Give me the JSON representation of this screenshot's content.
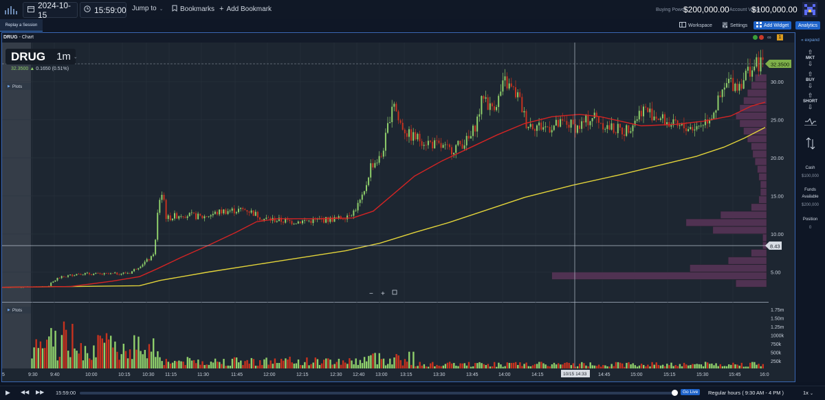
{
  "topbar": {
    "date": "2024-10-15",
    "time": "15:59:00",
    "jump_to": "Jump to",
    "bookmarks": "Bookmarks",
    "add_bookmark": "Add Bookmark",
    "buying_power_label": "Buying Power",
    "buying_power_value": "$200,000.00",
    "account_value_label": "Account Value",
    "account_value_value": "$100,000.00"
  },
  "subbar": {
    "replay_tab": "Replay a Session",
    "workspace": "Workspace",
    "settings": "Settings",
    "add_widget": "Add Widget",
    "analytics": "Analytics"
  },
  "panel": {
    "title_symbol": "DRUG",
    "title_suffix": " - Chart",
    "badge": "1"
  },
  "chart": {
    "symbol": "DRUG",
    "interval": "1m",
    "last_price": "32.3500",
    "change": "0.1650 (0.51%)",
    "plots_label": "Plots",
    "volume_plots_label": "Plots",
    "price_tag": "32.3500",
    "crosshair_price": "8.43",
    "crosshair_time": "10/15 14:33",
    "left_edge_label": "5",
    "right_edge_label": "16:0",
    "colors": {
      "up": "#8fcf6b",
      "down": "#c8321e",
      "ma_fast": "#d42424",
      "ma_slow": "#e3d43a",
      "profile": "#5a3558",
      "tag_green": "#7fb04a"
    }
  },
  "chart_data": {
    "type": "candlestick",
    "x_ticks": [
      "9:30",
      "9:40",
      "10:00",
      "10:15",
      "10:30",
      "11:15",
      "11:30",
      "11:45",
      "12:00",
      "12:15",
      "12:30",
      "12:40",
      "13:00",
      "13:15",
      "13:30",
      "13:45",
      "14:00",
      "14:15",
      "14:30",
      "14:45",
      "15:00",
      "15:15",
      "15:30",
      "15:45"
    ],
    "y_ticks": [
      "30.00",
      "25.00",
      "20.00",
      "15.00",
      "10.00",
      "5.00"
    ],
    "volume_ticks": [
      "1.75m",
      "1.50m",
      "1.25m",
      "1000k",
      "750k",
      "500k",
      "250k"
    ],
    "price_path": [
      [
        0,
        3.0
      ],
      [
        65,
        3.1
      ],
      [
        80,
        4.2
      ],
      [
        110,
        4.8
      ],
      [
        150,
        4.7
      ],
      [
        185,
        4.9
      ],
      [
        205,
        6.2
      ],
      [
        218,
        7.0
      ],
      [
        222,
        9.0
      ],
      [
        226,
        13.5
      ],
      [
        230,
        15.5
      ],
      [
        234,
        14.8
      ],
      [
        238,
        12.0
      ],
      [
        260,
        12.6
      ],
      [
        290,
        12.2
      ],
      [
        320,
        13.0
      ],
      [
        355,
        13.2
      ],
      [
        380,
        12.0
      ],
      [
        420,
        11.6
      ],
      [
        460,
        11.8
      ],
      [
        490,
        12.0
      ],
      [
        510,
        12.9
      ],
      [
        525,
        15.0
      ],
      [
        535,
        19.0
      ],
      [
        550,
        20.0
      ],
      [
        558,
        23.0
      ],
      [
        568,
        28.0
      ],
      [
        575,
        25.0
      ],
      [
        590,
        23.0
      ],
      [
        620,
        22.0
      ],
      [
        650,
        21.0
      ],
      [
        680,
        22.5
      ],
      [
        690,
        25.0
      ],
      [
        700,
        28.5
      ],
      [
        708,
        26.5
      ],
      [
        720,
        27.5
      ],
      [
        730,
        30.0
      ],
      [
        750,
        28.0
      ],
      [
        762,
        24.5
      ],
      [
        790,
        24.0
      ],
      [
        820,
        24.5
      ],
      [
        836,
        24.0
      ],
      [
        860,
        25.5
      ],
      [
        880,
        24.0
      ],
      [
        905,
        23.5
      ],
      [
        920,
        25.0
      ],
      [
        930,
        26.5
      ],
      [
        950,
        25.5
      ],
      [
        980,
        24.0
      ],
      [
        1010,
        24.0
      ],
      [
        1030,
        25.5
      ],
      [
        1045,
        28.0
      ],
      [
        1055,
        30.0
      ],
      [
        1070,
        29.5
      ],
      [
        1085,
        31.5
      ],
      [
        1100,
        32.35
      ]
    ],
    "ma_fast_path": [
      [
        0,
        3.0
      ],
      [
        100,
        3.1
      ],
      [
        160,
        3.8
      ],
      [
        200,
        4.4
      ],
      [
        225,
        5.4
      ],
      [
        260,
        6.9
      ],
      [
        300,
        8.5
      ],
      [
        340,
        10.2
      ],
      [
        370,
        11.6
      ],
      [
        400,
        12.0
      ],
      [
        460,
        12.0
      ],
      [
        510,
        12.1
      ],
      [
        540,
        13.0
      ],
      [
        570,
        15.3
      ],
      [
        600,
        17.6
      ],
      [
        640,
        19.6
      ],
      [
        680,
        21.3
      ],
      [
        720,
        23.0
      ],
      [
        760,
        24.5
      ],
      [
        800,
        25.4
      ],
      [
        840,
        25.7
      ],
      [
        870,
        25.4
      ],
      [
        900,
        24.8
      ],
      [
        930,
        24.2
      ],
      [
        980,
        24.4
      ],
      [
        1020,
        24.8
      ],
      [
        1060,
        25.5
      ],
      [
        1090,
        26.8
      ],
      [
        1110,
        27.3
      ]
    ],
    "ma_slow_path": [
      [
        0,
        3.0
      ],
      [
        200,
        3.2
      ],
      [
        230,
        3.9
      ],
      [
        300,
        5.0
      ],
      [
        400,
        6.4
      ],
      [
        500,
        7.8
      ],
      [
        550,
        8.8
      ],
      [
        600,
        10.2
      ],
      [
        650,
        11.5
      ],
      [
        700,
        13.0
      ],
      [
        760,
        14.8
      ],
      [
        830,
        16.4
      ],
      [
        900,
        17.8
      ],
      [
        960,
        19.1
      ],
      [
        1010,
        20.2
      ],
      [
        1050,
        21.4
      ],
      [
        1080,
        22.6
      ],
      [
        1110,
        24.0
      ]
    ],
    "volume_profile": [
      {
        "price": 30.5,
        "width": 0.015
      },
      {
        "price": 29.5,
        "width": 0.02
      },
      {
        "price": 28.5,
        "width": 0.025
      },
      {
        "price": 27.5,
        "width": 0.03
      },
      {
        "price": 26.5,
        "width": 0.035
      },
      {
        "price": 25.5,
        "width": 0.04
      },
      {
        "price": 24.5,
        "width": 0.035
      },
      {
        "price": 23.5,
        "width": 0.03
      },
      {
        "price": 22.5,
        "width": 0.025
      },
      {
        "price": 21.5,
        "width": 0.02
      },
      {
        "price": 20.5,
        "width": 0.018
      },
      {
        "price": 19.5,
        "width": 0.015
      },
      {
        "price": 18.5,
        "width": 0.012
      },
      {
        "price": 17.5,
        "width": 0.01
      },
      {
        "price": 16.5,
        "width": 0.008
      },
      {
        "price": 15.5,
        "width": 0.008
      },
      {
        "price": 14.5,
        "width": 0.01
      },
      {
        "price": 13.5,
        "width": 0.02
      },
      {
        "price": 12.5,
        "width": 0.06
      },
      {
        "price": 11.5,
        "width": 0.105
      },
      {
        "price": 10.5,
        "width": 0.07
      },
      {
        "price": 9.5,
        "width": 0.005
      },
      {
        "price": 8.5,
        "width": 0.005
      },
      {
        "price": 7.5,
        "width": 0.02
      },
      {
        "price": 6.5,
        "width": 0.05
      },
      {
        "price": 5.5,
        "width": 0.1
      },
      {
        "price": 4.5,
        "width": 0.28
      },
      {
        "price": 3.5,
        "width": 0.04
      }
    ],
    "volume_series": [
      {
        "name": "up",
        "values": [
          0.35,
          0.5,
          0.9,
          1.2,
          1.0,
          0.8,
          1.1,
          0.9,
          0.6,
          0.4,
          0.3,
          0.25
        ]
      },
      {
        "name": "down",
        "values": [
          0.4,
          0.7,
          0.5,
          0.3,
          0.2,
          0.2
        ]
      }
    ]
  },
  "rside": {
    "expand": "expand",
    "mkt": "MKT",
    "buy": "BUY",
    "short": "SHORT",
    "cash_label": "Cash",
    "cash_value": "$100,000",
    "funds_label": "Funds",
    "funds_label2": "Available",
    "funds_value": "$200,000",
    "position_label": "Position",
    "position_value": "0"
  },
  "bottombar": {
    "time": "15:59:00",
    "go_live": "Go Live",
    "session": "Regular hours ( 9:30 AM - 4 PM )",
    "speed": "1x"
  }
}
